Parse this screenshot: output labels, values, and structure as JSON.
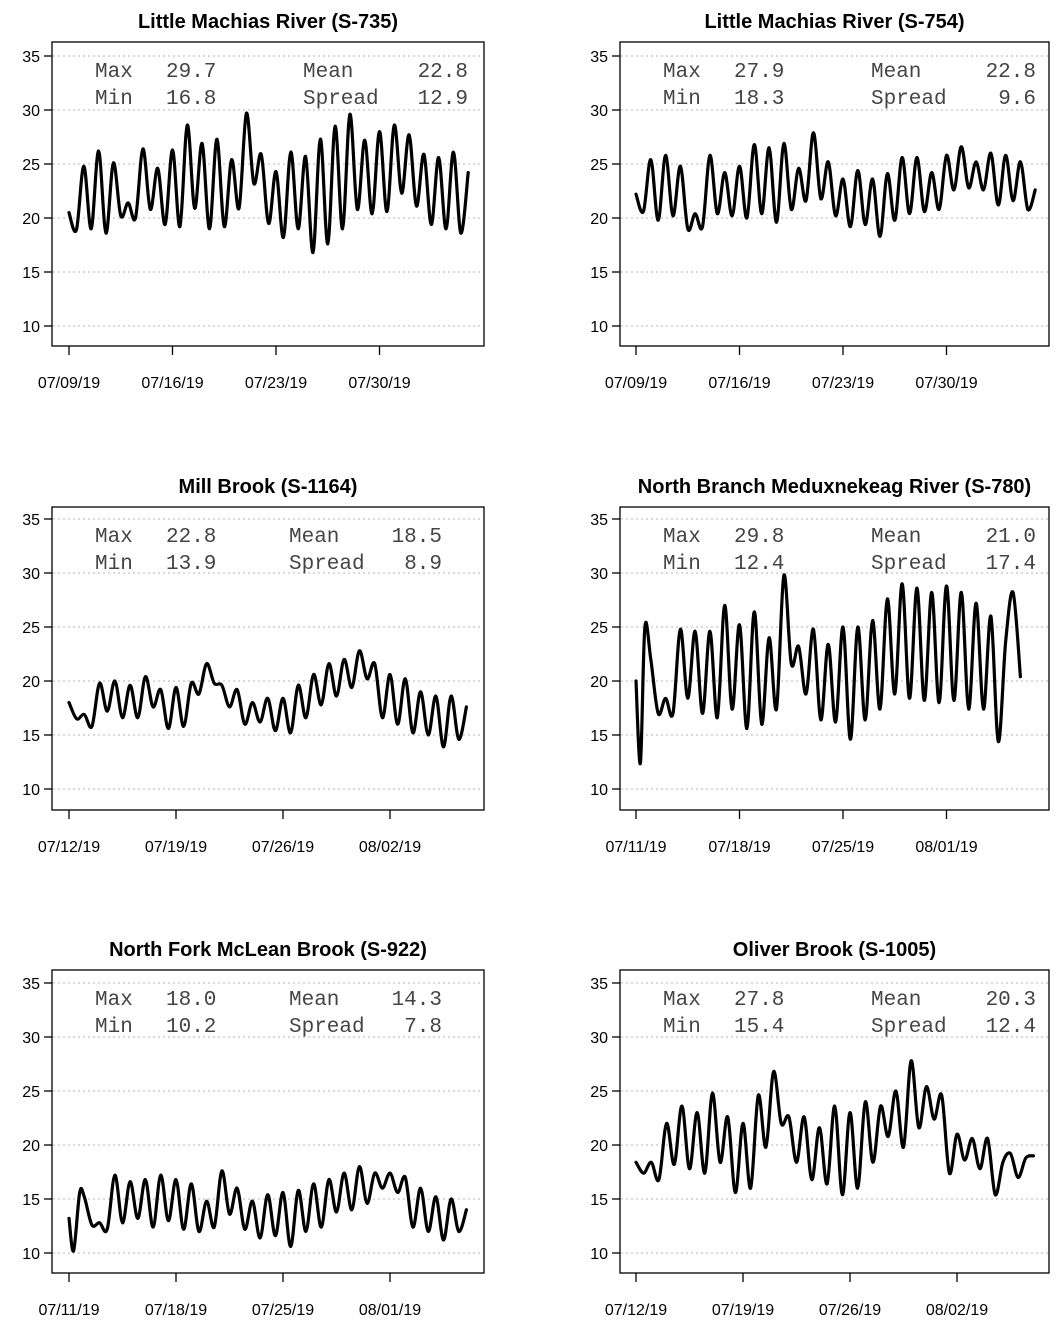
{
  "chart_data": [
    {
      "type": "line",
      "title": "Little Machias River (S-735)",
      "x_tick_labels": [
        "07/09/19",
        "07/16/19",
        "07/23/19",
        "07/30/19"
      ],
      "y_ticks": [
        10,
        15,
        20,
        25,
        30,
        35
      ],
      "ylim": [
        8,
        36.5
      ],
      "grid": "horizontal dotted",
      "stats": {
        "max_label": "Max",
        "max": "29.7",
        "min_label": "Min",
        "min": "16.8",
        "mean_label": "Mean",
        "mean": "22.8",
        "spread_label": "Spread",
        "spread": "12.9"
      },
      "x_day_range": [
        0,
        27
      ],
      "series": [
        {
          "x": [
            0.0,
            0.5,
            1.0,
            1.5,
            2.0,
            2.5,
            3.0,
            3.5,
            4.0,
            4.5,
            5.0,
            5.5,
            6.0,
            6.5,
            7.0,
            7.5,
            8.0,
            8.5,
            9.0,
            9.5,
            10.0,
            10.5,
            11.0,
            11.5,
            12.0,
            12.5,
            13.0,
            13.5,
            14.0,
            14.5,
            15.0,
            15.5,
            16.0,
            16.5,
            17.0,
            17.5,
            18.0,
            18.5,
            19.0,
            19.5,
            20.0,
            20.5,
            21.0,
            21.5,
            22.0,
            22.5,
            23.0,
            23.5,
            24.0,
            24.5,
            25.0,
            25.5,
            26.0,
            26.5,
            27.0
          ],
          "y": [
            20.5,
            18.9,
            24.8,
            19.0,
            26.2,
            18.6,
            25.1,
            20.2,
            21.4,
            20.0,
            26.4,
            20.8,
            24.6,
            19.4,
            26.3,
            19.2,
            28.6,
            20.9,
            26.9,
            19.0,
            27.3,
            19.2,
            25.4,
            20.9,
            29.7,
            23.2,
            25.9,
            19.5,
            24.3,
            18.2,
            26.1,
            19.0,
            25.7,
            16.8,
            27.3,
            17.6,
            28.5,
            19.0,
            29.6,
            20.8,
            27.2,
            20.4,
            28.0,
            20.6,
            28.6,
            22.3,
            27.7,
            21.1,
            25.9,
            19.4,
            25.6,
            19.0,
            26.1,
            18.6,
            24.2
          ]
        }
      ]
    },
    {
      "type": "line",
      "title": "Little Machias River (S-754)",
      "x_tick_labels": [
        "07/09/19",
        "07/16/19",
        "07/23/19",
        "07/30/19"
      ],
      "y_ticks": [
        10,
        15,
        20,
        25,
        30,
        35
      ],
      "ylim": [
        8,
        36.5
      ],
      "grid": "horizontal dotted",
      "stats": {
        "max_label": "Max",
        "max": "27.9",
        "min_label": "Min",
        "min": "18.3",
        "mean_label": "Mean",
        "mean": "22.8",
        "spread_label": "Spread",
        "spread": "9.6"
      },
      "x_day_range": [
        0,
        27
      ],
      "series": [
        {
          "x": [
            0.0,
            0.5,
            1.0,
            1.5,
            2.0,
            2.5,
            3.0,
            3.5,
            4.0,
            4.5,
            5.0,
            5.5,
            6.0,
            6.5,
            7.0,
            7.5,
            8.0,
            8.5,
            9.0,
            9.5,
            10.0,
            10.5,
            11.0,
            11.5,
            12.0,
            12.5,
            13.0,
            13.5,
            14.0,
            14.5,
            15.0,
            15.5,
            16.0,
            16.5,
            17.0,
            17.5,
            18.0,
            18.5,
            19.0,
            19.5,
            20.0,
            20.5,
            21.0,
            21.5,
            22.0,
            22.5,
            23.0,
            23.5,
            24.0,
            24.5,
            25.0,
            25.5,
            26.0,
            26.5,
            27.0
          ],
          "y": [
            22.2,
            20.6,
            25.4,
            19.8,
            25.8,
            20.2,
            24.8,
            19.0,
            20.4,
            19.2,
            25.8,
            20.4,
            24.2,
            20.2,
            24.8,
            20.0,
            26.8,
            20.4,
            26.5,
            19.6,
            26.9,
            20.8,
            24.6,
            21.6,
            27.9,
            21.8,
            25.2,
            20.2,
            23.6,
            19.2,
            24.4,
            19.4,
            23.6,
            18.3,
            24.1,
            19.8,
            25.6,
            20.4,
            25.6,
            20.6,
            24.2,
            20.8,
            25.8,
            22.6,
            26.6,
            22.8,
            25.2,
            22.6,
            26.0,
            21.2,
            25.8,
            21.6,
            25.2,
            20.8,
            22.6
          ]
        }
      ]
    },
    {
      "type": "line",
      "title": "Mill Brook (S-1164)",
      "x_tick_labels": [
        "07/12/19",
        "07/19/19",
        "07/26/19",
        "08/02/19"
      ],
      "y_ticks": [
        10,
        15,
        20,
        25,
        30,
        35
      ],
      "ylim": [
        8,
        36.5
      ],
      "grid": "horizontal dotted",
      "stats": {
        "max_label": "Max",
        "max": "22.8",
        "min_label": "Min",
        "min": "13.9",
        "mean_label": "Mean",
        "mean": "18.5",
        "spread_label": "Spread",
        "spread": "8.9"
      },
      "x_day_range": [
        0,
        26
      ],
      "series": [
        {
          "x": [
            0.0,
            0.5,
            1.0,
            1.5,
            2.0,
            2.5,
            3.0,
            3.5,
            4.0,
            4.5,
            5.0,
            5.5,
            6.0,
            6.5,
            7.0,
            7.5,
            8.0,
            8.5,
            9.0,
            9.5,
            10.0,
            10.5,
            11.0,
            11.5,
            12.0,
            12.5,
            13.0,
            13.5,
            14.0,
            14.5,
            15.0,
            15.5,
            16.0,
            16.5,
            17.0,
            17.5,
            18.0,
            18.5,
            19.0,
            19.5,
            20.0,
            20.5,
            21.0,
            21.5,
            22.0,
            22.5,
            23.0,
            23.5,
            24.0,
            24.5,
            25.0,
            25.5,
            26.0
          ],
          "y": [
            18.0,
            16.5,
            16.9,
            15.8,
            19.8,
            17.2,
            20.0,
            16.6,
            19.6,
            16.6,
            20.4,
            17.6,
            19.2,
            15.6,
            19.4,
            15.8,
            19.8,
            18.8,
            21.6,
            19.8,
            19.6,
            17.6,
            19.2,
            16.0,
            18.0,
            16.2,
            18.4,
            15.4,
            18.4,
            15.2,
            19.6,
            16.6,
            20.6,
            17.8,
            21.6,
            18.6,
            22.0,
            19.4,
            22.8,
            20.2,
            21.6,
            16.6,
            20.6,
            16.0,
            20.2,
            15.2,
            19.0,
            15.0,
            18.6,
            13.9,
            18.6,
            14.6,
            17.6
          ]
        }
      ]
    },
    {
      "type": "line",
      "title": "North Branch Meduxnekeag River (S-780)",
      "x_tick_labels": [
        "07/11/19",
        "07/18/19",
        "07/25/19",
        "08/01/19"
      ],
      "y_ticks": [
        10,
        15,
        20,
        25,
        30,
        35
      ],
      "ylim": [
        8,
        36.5
      ],
      "grid": "horizontal dotted",
      "stats": {
        "max_label": "Max",
        "max": "29.8",
        "min_label": "Min",
        "min": "12.4",
        "mean_label": "Mean",
        "mean": "21.0",
        "spread_label": "Spread",
        "spread": "17.4"
      },
      "x_day_range": [
        0,
        26
      ],
      "series": [
        {
          "x": [
            0.0,
            0.3,
            0.6,
            1.0,
            1.5,
            2.0,
            2.5,
            3.0,
            3.5,
            4.0,
            4.5,
            5.0,
            5.5,
            6.0,
            6.5,
            7.0,
            7.5,
            8.0,
            8.5,
            9.0,
            9.5,
            10.0,
            10.5,
            11.0,
            11.5,
            12.0,
            12.5,
            13.0,
            13.5,
            14.0,
            14.5,
            15.0,
            15.5,
            16.0,
            16.5,
            17.0,
            17.5,
            18.0,
            18.5,
            19.0,
            19.5,
            20.0,
            20.5,
            21.0,
            21.5,
            22.0,
            22.5,
            23.0,
            23.5,
            24.0,
            24.5,
            25.0,
            25.5,
            26.0
          ],
          "y": [
            20.0,
            12.4,
            25.0,
            22.0,
            17.0,
            18.4,
            17.0,
            24.8,
            18.4,
            24.6,
            17.0,
            24.6,
            16.6,
            27.0,
            17.4,
            25.2,
            15.6,
            26.4,
            16.0,
            24.0,
            17.4,
            29.8,
            21.6,
            23.2,
            18.8,
            24.8,
            16.4,
            23.4,
            16.2,
            25.0,
            14.6,
            25.0,
            16.4,
            25.6,
            17.4,
            27.6,
            18.8,
            29.0,
            18.4,
            28.6,
            18.2,
            28.2,
            18.0,
            28.8,
            18.2,
            28.2,
            17.4,
            27.2,
            17.4,
            26.0,
            14.4,
            23.6,
            28.2,
            20.4
          ]
        }
      ]
    },
    {
      "type": "line",
      "title": "North Fork McLean Brook (S-922)",
      "x_tick_labels": [
        "07/11/19",
        "07/18/19",
        "07/25/19",
        "08/01/19"
      ],
      "y_ticks": [
        10,
        15,
        20,
        25,
        30,
        35
      ],
      "ylim": [
        8,
        36.5
      ],
      "grid": "horizontal dotted",
      "stats": {
        "max_label": "Max",
        "max": "18.0",
        "min_label": "Min",
        "min": "10.2",
        "mean_label": "Mean",
        "mean": "14.3",
        "spread_label": "Spread",
        "spread": "7.8"
      },
      "x_day_range": [
        0,
        26
      ],
      "series": [
        {
          "x": [
            0.0,
            0.3,
            0.7,
            1.0,
            1.5,
            2.0,
            2.5,
            3.0,
            3.5,
            4.0,
            4.5,
            5.0,
            5.5,
            6.0,
            6.5,
            7.0,
            7.5,
            8.0,
            8.5,
            9.0,
            9.5,
            10.0,
            10.5,
            11.0,
            11.5,
            12.0,
            12.5,
            13.0,
            13.5,
            14.0,
            14.5,
            15.0,
            15.5,
            16.0,
            16.5,
            17.0,
            17.5,
            18.0,
            18.5,
            19.0,
            19.5,
            20.0,
            20.5,
            21.0,
            21.5,
            22.0,
            22.5,
            23.0,
            23.5,
            24.0,
            24.5,
            25.0,
            25.5,
            26.0
          ],
          "y": [
            13.2,
            10.2,
            15.6,
            15.2,
            12.6,
            12.8,
            12.2,
            17.2,
            12.8,
            16.6,
            13.2,
            16.8,
            12.4,
            17.2,
            13.0,
            16.8,
            12.2,
            16.4,
            12.0,
            14.8,
            12.4,
            17.6,
            13.6,
            16.0,
            12.2,
            14.8,
            11.4,
            15.4,
            11.6,
            15.6,
            10.6,
            15.8,
            12.0,
            16.4,
            12.4,
            16.8,
            13.8,
            17.4,
            14.0,
            18.0,
            14.6,
            17.4,
            16.0,
            17.4,
            15.6,
            17.0,
            12.4,
            16.0,
            12.0,
            15.2,
            11.2,
            15.0,
            12.0,
            14.0
          ]
        }
      ]
    },
    {
      "type": "line",
      "title": "Oliver Brook (S-1005)",
      "x_tick_labels": [
        "07/12/19",
        "07/19/19",
        "07/26/19",
        "08/02/19"
      ],
      "y_ticks": [
        10,
        15,
        20,
        25,
        30,
        35
      ],
      "ylim": [
        8,
        36.5
      ],
      "grid": "horizontal dotted",
      "stats": {
        "max_label": "Max",
        "max": "27.8",
        "min_label": "Min",
        "min": "15.4",
        "mean_label": "Mean",
        "mean": "20.3",
        "spread_label": "Spread",
        "spread": "12.4"
      },
      "x_day_range": [
        0,
        26
      ],
      "series": [
        {
          "x": [
            0.0,
            0.5,
            1.0,
            1.5,
            2.0,
            2.5,
            3.0,
            3.5,
            4.0,
            4.5,
            5.0,
            5.5,
            6.0,
            6.5,
            7.0,
            7.5,
            8.0,
            8.5,
            9.0,
            9.5,
            10.0,
            10.5,
            11.0,
            11.5,
            12.0,
            12.5,
            13.0,
            13.5,
            14.0,
            14.5,
            15.0,
            15.5,
            16.0,
            16.5,
            17.0,
            17.5,
            18.0,
            18.5,
            19.0,
            19.5,
            20.0,
            20.5,
            21.0,
            21.5,
            22.0,
            22.5,
            23.0,
            23.5,
            24.0,
            24.5,
            25.0,
            25.5,
            26.0
          ],
          "y": [
            18.4,
            17.4,
            18.4,
            16.8,
            22.0,
            18.2,
            23.6,
            17.8,
            23.0,
            17.4,
            24.8,
            18.4,
            22.6,
            15.6,
            22.0,
            16.0,
            24.6,
            19.8,
            26.8,
            22.0,
            22.6,
            18.4,
            22.6,
            16.8,
            21.6,
            16.4,
            23.6,
            15.4,
            23.0,
            16.0,
            24.0,
            18.4,
            23.6,
            20.8,
            25.0,
            19.8,
            27.8,
            21.6,
            25.4,
            22.4,
            24.6,
            17.4,
            21.0,
            18.6,
            20.6,
            17.8,
            20.6,
            15.4,
            18.4,
            19.2,
            17.0,
            18.8,
            19.0
          ]
        }
      ]
    }
  ]
}
